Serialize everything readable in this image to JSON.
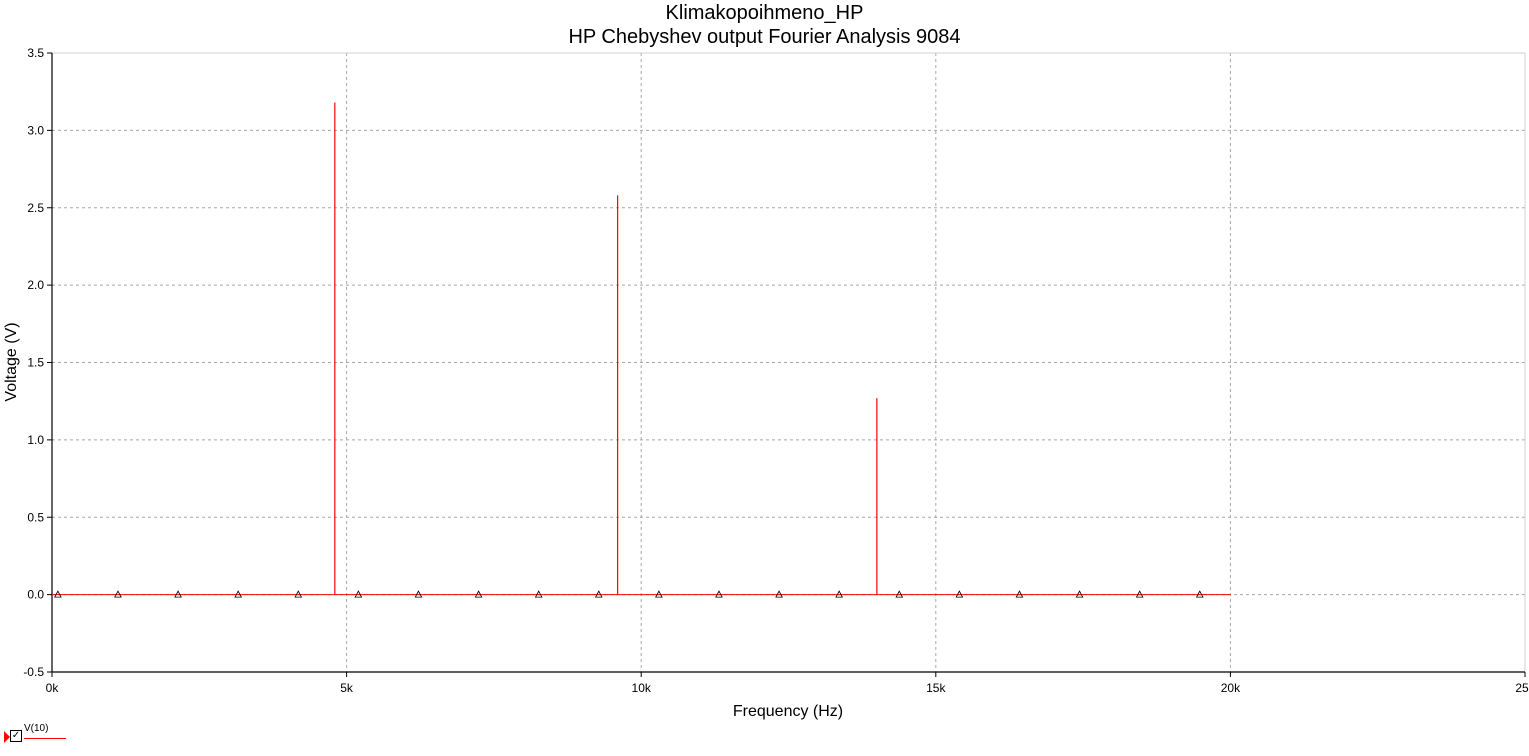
{
  "chart_data": {
    "type": "line",
    "title": "Klimakopoihmeno_HP",
    "subtitle": "HP Chebyshev output Fourier Analysis 9084",
    "xlabel": "Frequency (Hz)",
    "ylabel": "Voltage (V)",
    "xlim": [
      0,
      25000
    ],
    "ylim": [
      -0.5,
      3.5
    ],
    "x_ticks": [
      0,
      5000,
      10000,
      15000,
      20000,
      25000
    ],
    "x_tick_labels": [
      "0k",
      "5k",
      "10k",
      "15k",
      "20k",
      "25k"
    ],
    "y_ticks": [
      -0.5,
      0.0,
      0.5,
      1.0,
      1.5,
      2.0,
      2.5,
      3.0,
      3.5
    ],
    "y_tick_labels": [
      "-0.5",
      "0.0",
      "0.5",
      "1.0",
      "1.5",
      "2.0",
      "2.5",
      "3.0",
      "3.5"
    ],
    "grid": true,
    "series": [
      {
        "name": "V(10)",
        "color": "#ff0000",
        "baseline": [
          0,
          20000
        ],
        "peaks": [
          {
            "x": 4800,
            "y": 3.18
          },
          {
            "x": 9600,
            "y": 2.58
          },
          {
            "x": 14000,
            "y": 1.27
          }
        ],
        "markers_x": [
          100,
          1120,
          2140,
          3160,
          4180,
          5200,
          6220,
          7240,
          8260,
          9280,
          10300,
          11320,
          12340,
          13360,
          14380,
          15400,
          16420,
          17440,
          18460,
          19480
        ]
      }
    ]
  }
}
